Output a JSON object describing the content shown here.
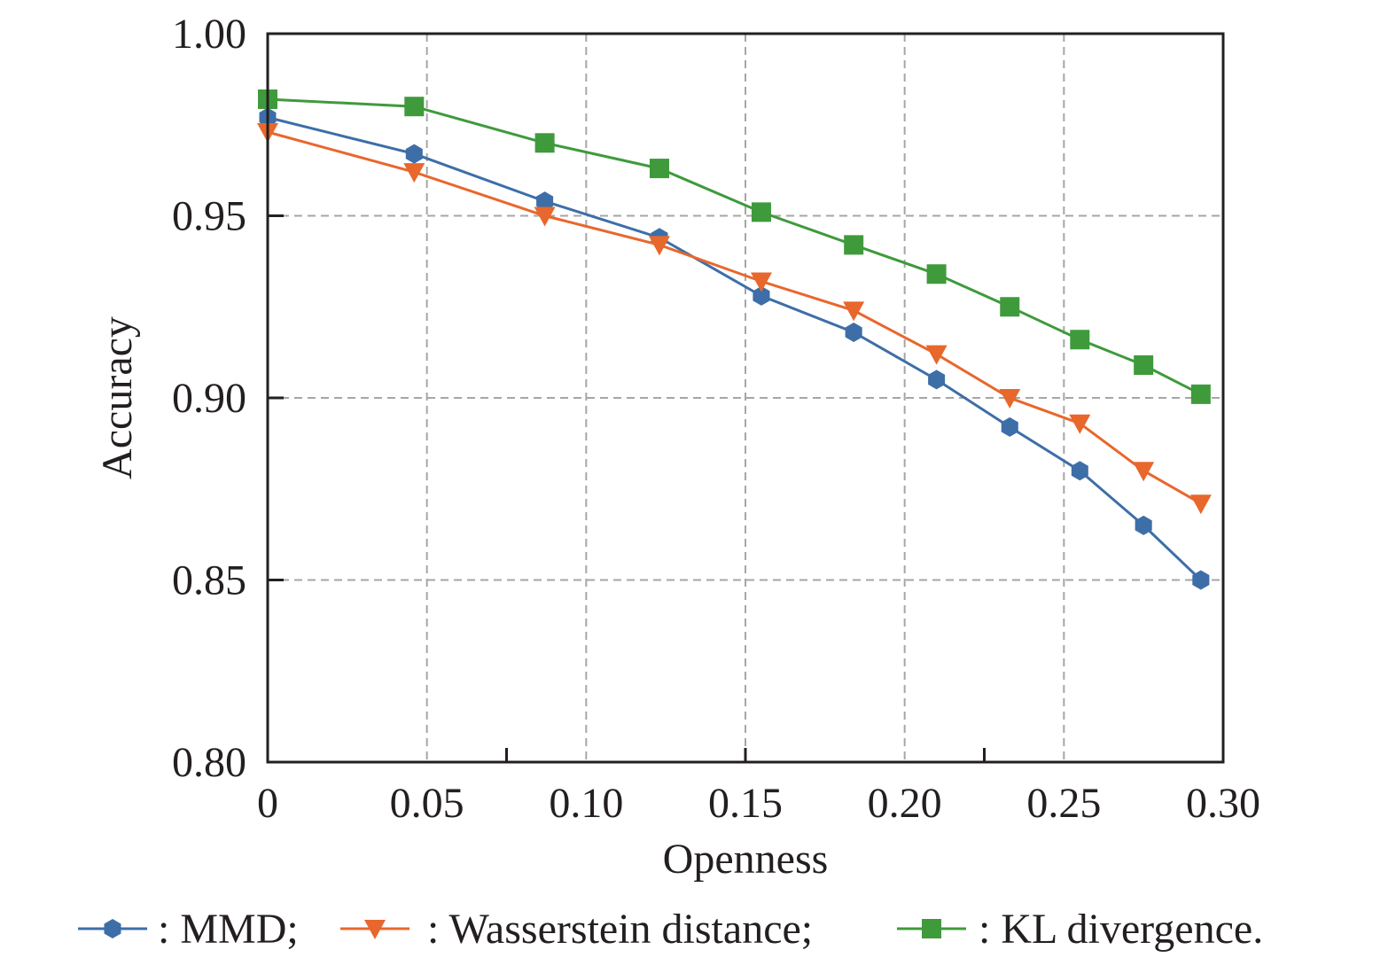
{
  "chart_data": {
    "type": "line",
    "title": "",
    "xlabel": "Openness",
    "ylabel": "Accuracy",
    "xlim": [
      0,
      0.3
    ],
    "ylim": [
      0.8,
      1.0
    ],
    "xticks": [
      0,
      0.05,
      0.1,
      0.15,
      0.2,
      0.25,
      0.3
    ],
    "xtick_labels": [
      "0",
      "0.05",
      "0.10",
      "0.15",
      "0.20",
      "0.25",
      "0.30"
    ],
    "yticks": [
      0.8,
      0.85,
      0.9,
      0.95,
      1.0
    ],
    "ytick_labels": [
      "0.80",
      "0.85",
      "0.90",
      "0.95",
      "1.00"
    ],
    "grid": true,
    "legend_position": "bottom",
    "x": [
      0,
      0.046,
      0.087,
      0.123,
      0.155,
      0.184,
      0.21,
      0.233,
      0.255,
      0.275,
      0.293
    ],
    "series": [
      {
        "name": "MMD",
        "legend_label": ": MMD;",
        "color": "#3d6ea8",
        "marker": "hexagon",
        "values": [
          0.977,
          0.967,
          0.954,
          0.944,
          0.928,
          0.918,
          0.905,
          0.892,
          0.88,
          0.865,
          0.85
        ]
      },
      {
        "name": "Wasserstein distance",
        "legend_label": ": Wasserstein distance;",
        "color": "#e8672c",
        "marker": "triangle-down",
        "values": [
          0.973,
          0.962,
          0.95,
          0.942,
          0.932,
          0.924,
          0.912,
          0.9,
          0.893,
          0.88,
          0.871
        ]
      },
      {
        "name": "KL divergence",
        "legend_label": ": KL divergence.",
        "color": "#3f9a3c",
        "marker": "square",
        "values": [
          0.982,
          0.98,
          0.97,
          0.963,
          0.951,
          0.942,
          0.934,
          0.925,
          0.916,
          0.909,
          0.901
        ]
      }
    ]
  }
}
